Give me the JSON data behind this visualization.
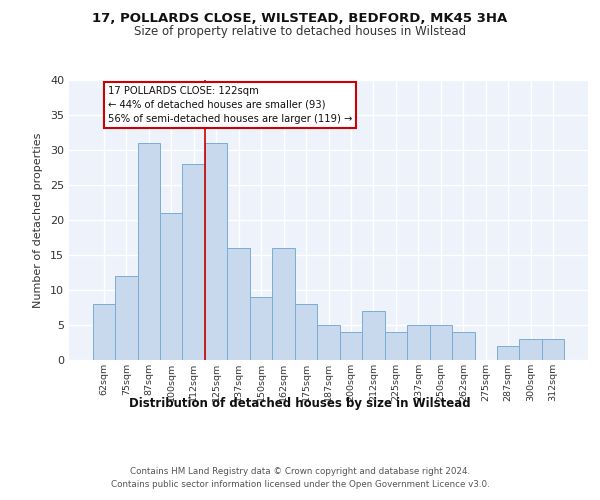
{
  "title1": "17, POLLARDS CLOSE, WILSTEAD, BEDFORD, MK45 3HA",
  "title2": "Size of property relative to detached houses in Wilstead",
  "xlabel": "Distribution of detached houses by size in Wilstead",
  "ylabel": "Number of detached properties",
  "categories": [
    "62sqm",
    "75sqm",
    "87sqm",
    "100sqm",
    "112sqm",
    "125sqm",
    "137sqm",
    "150sqm",
    "162sqm",
    "175sqm",
    "187sqm",
    "200sqm",
    "212sqm",
    "225sqm",
    "237sqm",
    "250sqm",
    "262sqm",
    "275sqm",
    "287sqm",
    "300sqm",
    "312sqm"
  ],
  "values": [
    8,
    12,
    31,
    21,
    28,
    31,
    16,
    9,
    16,
    8,
    5,
    4,
    7,
    4,
    5,
    5,
    4,
    0,
    2,
    3,
    3
  ],
  "bar_color": "#c8d9ee",
  "bar_edge_color": "#7aadd4",
  "property_bin_index": 5,
  "annotation_line1": "17 POLLARDS CLOSE: 122sqm",
  "annotation_line2": "← 44% of detached houses are smaller (93)",
  "annotation_line3": "56% of semi-detached houses are larger (119) →",
  "vline_color": "#cc0000",
  "annotation_box_edgecolor": "#cc0000",
  "ylim": [
    0,
    40
  ],
  "yticks": [
    0,
    5,
    10,
    15,
    20,
    25,
    30,
    35,
    40
  ],
  "footer1": "Contains HM Land Registry data © Crown copyright and database right 2024.",
  "footer2": "Contains public sector information licensed under the Open Government Licence v3.0.",
  "background_color": "#ffffff",
  "plot_bg_color": "#edf2fb"
}
